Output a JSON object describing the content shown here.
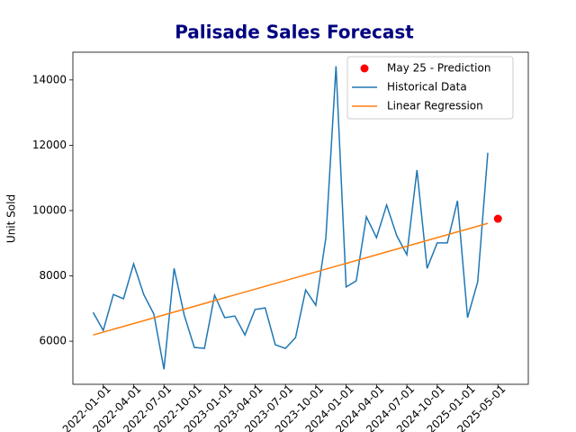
{
  "chart_data": {
    "type": "line",
    "title": "Palisade Sales Forecast",
    "y_label": "Unit Sold",
    "xlim": [
      -2,
      43
    ],
    "ylim": [
      4680,
      14850
    ],
    "xticks": [
      {
        "value": 1,
        "label": "2022-01-01"
      },
      {
        "value": 4,
        "label": "2022-04-01"
      },
      {
        "value": 7,
        "label": "2022-07-01"
      },
      {
        "value": 10,
        "label": "2022-10-01"
      },
      {
        "value": 13,
        "label": "2023-01-01"
      },
      {
        "value": 16,
        "label": "2023-04-01"
      },
      {
        "value": 19,
        "label": "2023-07-01"
      },
      {
        "value": 22,
        "label": "2023-10-01"
      },
      {
        "value": 25,
        "label": "2024-01-01"
      },
      {
        "value": 28,
        "label": "2024-04-01"
      },
      {
        "value": 31,
        "label": "2024-07-01"
      },
      {
        "value": 34,
        "label": "2024-10-01"
      },
      {
        "value": 37,
        "label": "2025-01-01"
      },
      {
        "value": 40,
        "label": "2025-05-01"
      }
    ],
    "yticks": [
      6000,
      8000,
      10000,
      12000,
      14000
    ],
    "grid": false,
    "legend": "upper right",
    "series": [
      {
        "name": "May 25 - Prediction",
        "kind": "scatter",
        "color": "#ff0000",
        "x": [
          40
        ],
        "values": [
          9750
        ]
      },
      {
        "name": "Historical Data",
        "kind": "line",
        "color": "#1f77b4",
        "x": [
          0,
          1,
          2,
          3,
          4,
          5,
          6,
          7,
          8,
          9,
          10,
          11,
          12,
          13,
          14,
          15,
          16,
          17,
          18,
          19,
          20,
          21,
          22,
          23,
          24,
          25,
          26,
          27,
          28,
          29,
          30,
          31,
          32,
          33,
          34,
          35,
          36,
          37,
          38,
          39
        ],
        "values": [
          6880,
          6330,
          7430,
          7300,
          8370,
          7430,
          6830,
          5140,
          8230,
          6800,
          5810,
          5780,
          7410,
          6720,
          6770,
          6190,
          6970,
          7020,
          5890,
          5780,
          6110,
          7570,
          7100,
          9170,
          14420,
          7660,
          7850,
          9810,
          9170,
          10170,
          9230,
          8650,
          11240,
          8230,
          9010,
          9010,
          10300,
          6720,
          7820,
          11770
        ]
      },
      {
        "name": "Linear Regression",
        "kind": "line",
        "color": "#ff7f0e",
        "x": [
          0,
          39
        ],
        "values": [
          6190,
          9610
        ]
      }
    ]
  }
}
